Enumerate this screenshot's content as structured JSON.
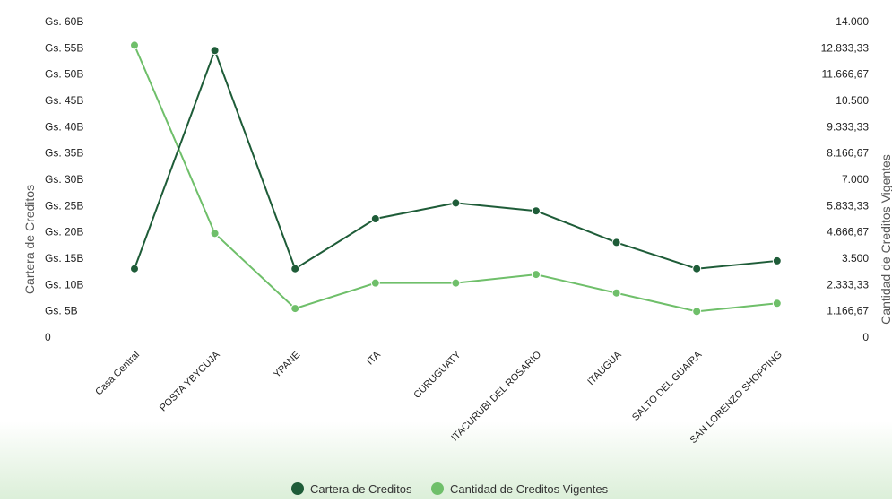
{
  "chart_data": {
    "type": "line",
    "categories": [
      "Casa Central",
      "POSTA YBYCUJA",
      "YPANE",
      "ITA",
      "CURUGUATY",
      "ITACURUBI DEL ROSARIO",
      "ITAUGUA",
      "SALTO DEL GUAIRA",
      "SAN LORENZO SHOPPING"
    ],
    "series": [
      {
        "name": "Cartera de Creditos",
        "axis": "left",
        "color": "#1e5c38",
        "values": [
          13.0,
          54.5,
          13.0,
          22.5,
          25.5,
          24.0,
          18.0,
          13.0,
          14.5
        ]
      },
      {
        "name": "Cantidad de Creditos Vigentes",
        "axis": "right",
        "color": "#6fbf6a",
        "values": [
          12950,
          4600,
          1270,
          2400,
          2400,
          2780,
          1960,
          1140,
          1500
        ]
      }
    ],
    "left_axis": {
      "title": "Cartera de Creditos",
      "range": [
        0,
        60
      ],
      "ticks": [
        0,
        5,
        10,
        15,
        20,
        25,
        30,
        35,
        40,
        45,
        50,
        55,
        60
      ],
      "tick_labels": [
        "0",
        "Gs. 5B",
        "Gs. 10B",
        "Gs. 15B",
        "Gs. 20B",
        "Gs. 25B",
        "Gs. 30B",
        "Gs. 35B",
        "Gs. 40B",
        "Gs. 45B",
        "Gs. 50B",
        "Gs. 55B",
        "Gs. 60B"
      ]
    },
    "right_axis": {
      "title": "Cantidad de Creditos Vigentes",
      "range": [
        0,
        14000
      ],
      "ticks": [
        0,
        1166.67,
        2333.33,
        3500,
        4666.67,
        5833.33,
        7000,
        8166.67,
        9333.33,
        10500,
        11666.67,
        12833.33,
        14000
      ],
      "tick_labels": [
        "0",
        "1.166,67",
        "2.333,33",
        "3.500",
        "4.666,67",
        "5.833,33",
        "7.000",
        "8.166,67",
        "9.333,33",
        "10.500",
        "11.666,67",
        "12.833,33",
        "14.000"
      ]
    },
    "grid": false,
    "legend": {
      "placement": "bottom",
      "items": [
        "Cartera de Creditos",
        "Cantidad de Creditos Vigentes"
      ]
    }
  },
  "colors": {
    "footer_gradient_top": "#ffffff",
    "footer_gradient_bottom": "#dcefd9"
  }
}
